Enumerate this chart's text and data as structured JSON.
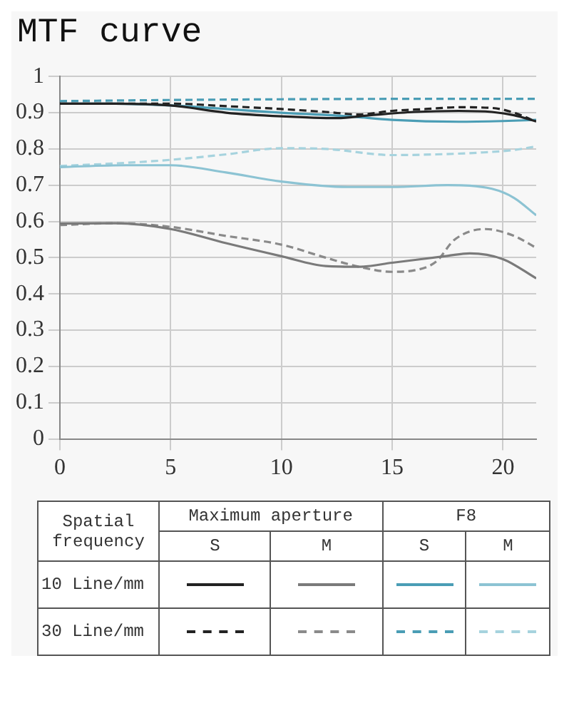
{
  "chart_data": {
    "type": "line",
    "title": "MTF curve",
    "xlim": [
      0,
      21.5
    ],
    "xticks": [
      0,
      5,
      10,
      15,
      20
    ],
    "ylim": [
      0,
      1
    ],
    "yticks": [
      0,
      0.1,
      0.2,
      0.3,
      0.4,
      0.5,
      0.6,
      0.7,
      0.8,
      0.9,
      1
    ],
    "grid": true,
    "marker": "none",
    "annotations": [
      "Spatial frequency",
      "Maximum aperture",
      "F8",
      "S",
      "M",
      "S",
      "M",
      "10 Line/mm",
      "30 Line/mm"
    ],
    "series": [
      {
        "color": "#222222",
        "line_style": "solid",
        "x": [
          0,
          2.5,
          5,
          7.5,
          10,
          12.5,
          14,
          16,
          18,
          19.5,
          20.5,
          21.5
        ],
        "values": [
          0.925,
          0.925,
          0.92,
          0.9,
          0.89,
          0.885,
          0.893,
          0.902,
          0.905,
          0.902,
          0.893,
          0.876
        ]
      },
      {
        "color": "#7a7a7a",
        "line_style": "solid",
        "x": [
          0,
          2.5,
          5,
          7.5,
          10,
          12,
          13.5,
          15,
          17.5,
          18.5,
          20,
          21.5
        ],
        "values": [
          0.594,
          0.595,
          0.579,
          0.54,
          0.504,
          0.477,
          0.475,
          0.486,
          0.505,
          0.512,
          0.496,
          0.443
        ]
      },
      {
        "color": "#4a9db5",
        "line_style": "solid",
        "x": [
          0,
          2.5,
          5,
          7.5,
          10,
          13,
          15,
          18,
          20,
          21.5
        ],
        "values": [
          0.925,
          0.925,
          0.92,
          0.91,
          0.9,
          0.89,
          0.88,
          0.875,
          0.877,
          0.88
        ]
      },
      {
        "color": "#8cc3d3",
        "line_style": "solid",
        "x": [
          0,
          3,
          5,
          7.5,
          10,
          13,
          15,
          17.5,
          19.5,
          20.5,
          21.5
        ],
        "values": [
          0.75,
          0.755,
          0.755,
          0.735,
          0.71,
          0.695,
          0.695,
          0.7,
          0.69,
          0.665,
          0.617
        ]
      },
      {
        "color": "#222222",
        "line_style": "dashed",
        "x": [
          0,
          2.5,
          5,
          7.5,
          10,
          12,
          13.5,
          15,
          16.5,
          18,
          19.5,
          20.5,
          21.5
        ],
        "values": [
          0.925,
          0.925,
          0.925,
          0.918,
          0.91,
          0.902,
          0.895,
          0.905,
          0.91,
          0.915,
          0.913,
          0.9,
          0.875
        ]
      },
      {
        "color": "#8a8a8a",
        "line_style": "dashed",
        "x": [
          0,
          2.5,
          5,
          7.5,
          10,
          12,
          13.5,
          15,
          16,
          17,
          17.8,
          19.2,
          20.5,
          21.5
        ],
        "values": [
          0.59,
          0.595,
          0.585,
          0.56,
          0.536,
          0.5,
          0.475,
          0.461,
          0.465,
          0.49,
          0.549,
          0.579,
          0.56,
          0.527
        ]
      },
      {
        "color": "#4a9db5",
        "line_style": "dashed",
        "x": [
          0,
          5,
          10,
          15,
          20,
          21.5
        ],
        "values": [
          0.932,
          0.935,
          0.937,
          0.938,
          0.938,
          0.938
        ]
      },
      {
        "color": "#a6d3de",
        "line_style": "dashed",
        "x": [
          0,
          2.5,
          5,
          7.5,
          10,
          12,
          15,
          17,
          19,
          20.5,
          21.5
        ],
        "values": [
          0.753,
          0.76,
          0.77,
          0.785,
          0.802,
          0.8,
          0.783,
          0.785,
          0.79,
          0.797,
          0.807
        ]
      }
    ]
  }
}
